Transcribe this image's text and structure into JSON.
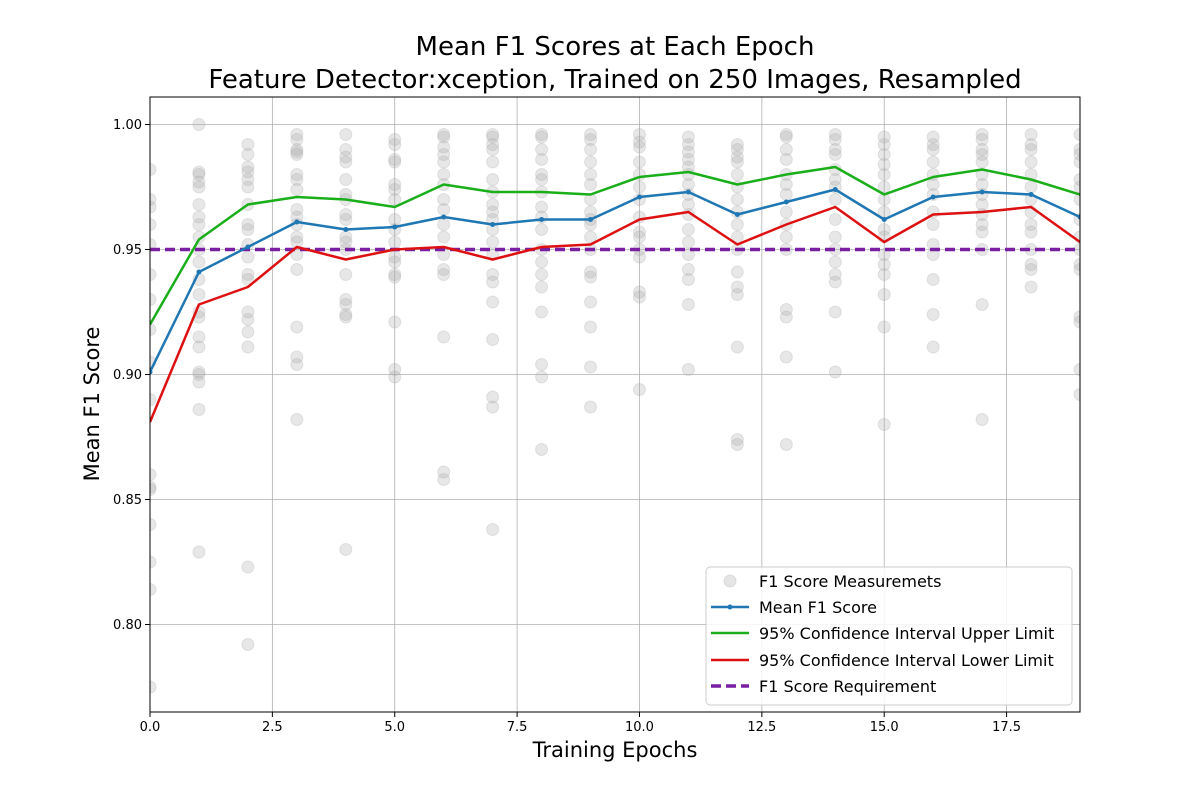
{
  "chart_data": {
    "type": "line",
    "title": "Mean F1 Scores at Each Epoch",
    "subtitle": "Feature Detector:xception, Trained on 250 Images, Resampled",
    "xlabel": "Training Epochs",
    "ylabel": "Mean F1 Score",
    "xlim": [
      0,
      19
    ],
    "ylim": [
      0.765,
      1.011
    ],
    "x_ticks": [
      0.0,
      2.5,
      5.0,
      7.5,
      10.0,
      12.5,
      15.0,
      17.5
    ],
    "x_tick_labels": [
      "0.0",
      "2.5",
      "5.0",
      "7.5",
      "10.0",
      "12.5",
      "15.0",
      "17.5"
    ],
    "y_ticks": [
      0.8,
      0.85,
      0.9,
      0.95,
      1.0
    ],
    "y_tick_labels": [
      "0.80",
      "0.85",
      "0.90",
      "0.95",
      "1.00"
    ],
    "grid": true,
    "legend_position": "bottom-right",
    "colors": {
      "measurements": "#aaaaaa",
      "mean": "#1f77b4",
      "upper": "#1aaf1a",
      "lower": "#dd1111",
      "requirement": "#7b1fa2"
    },
    "x": [
      0,
      1,
      2,
      3,
      4,
      5,
      6,
      7,
      8,
      9,
      10,
      11,
      12,
      13,
      14,
      15,
      16,
      17,
      18,
      19
    ],
    "series": [
      {
        "name": "Mean F1 Score",
        "key": "mean",
        "values": [
          0.901,
          0.941,
          0.951,
          0.961,
          0.958,
          0.959,
          0.963,
          0.96,
          0.962,
          0.962,
          0.971,
          0.973,
          0.964,
          0.969,
          0.974,
          0.962,
          0.971,
          0.973,
          0.972,
          0.963
        ]
      },
      {
        "name": "95% Confidence Interval Upper Limit",
        "key": "upper",
        "values": [
          0.92,
          0.954,
          0.968,
          0.971,
          0.97,
          0.967,
          0.976,
          0.973,
          0.973,
          0.972,
          0.979,
          0.981,
          0.976,
          0.98,
          0.983,
          0.972,
          0.979,
          0.982,
          0.978,
          0.972
        ]
      },
      {
        "name": "95% Confidence Interval Lower Limit",
        "key": "lower",
        "values": [
          0.881,
          0.928,
          0.935,
          0.951,
          0.946,
          0.95,
          0.951,
          0.946,
          0.951,
          0.952,
          0.962,
          0.965,
          0.952,
          0.96,
          0.967,
          0.953,
          0.964,
          0.965,
          0.967,
          0.953
        ]
      },
      {
        "name": "F1 Score Requirement",
        "key": "requirement",
        "style": "dashed",
        "values": [
          0.95,
          0.95,
          0.95,
          0.95,
          0.95,
          0.95,
          0.95,
          0.95,
          0.95,
          0.95,
          0.95,
          0.95,
          0.95,
          0.95,
          0.95,
          0.95,
          0.95,
          0.95,
          0.95,
          0.95
        ]
      }
    ],
    "measurements_name": "F1 Score Measuremets",
    "measurements": [
      [
        0,
        0.982
      ],
      [
        0,
        0.97
      ],
      [
        0,
        0.967
      ],
      [
        0,
        0.96
      ],
      [
        0,
        0.952
      ],
      [
        0,
        0.94
      ],
      [
        0,
        0.93
      ],
      [
        0,
        0.918
      ],
      [
        0,
        0.905
      ],
      [
        0,
        0.89
      ],
      [
        0,
        0.86
      ],
      [
        0,
        0.855
      ],
      [
        0,
        0.854
      ],
      [
        0,
        0.84
      ],
      [
        0,
        0.825
      ],
      [
        0,
        0.814
      ],
      [
        0,
        0.775
      ],
      [
        1,
        1.0
      ],
      [
        1,
        0.981
      ],
      [
        1,
        0.98
      ],
      [
        1,
        0.977
      ],
      [
        1,
        0.975
      ],
      [
        1,
        0.968
      ],
      [
        1,
        0.963
      ],
      [
        1,
        0.96
      ],
      [
        1,
        0.955
      ],
      [
        1,
        0.95
      ],
      [
        1,
        0.945
      ],
      [
        1,
        0.938
      ],
      [
        1,
        0.932
      ],
      [
        1,
        0.925
      ],
      [
        1,
        0.923
      ],
      [
        1,
        0.915
      ],
      [
        1,
        0.911
      ],
      [
        1,
        0.901
      ],
      [
        1,
        0.9
      ],
      [
        1,
        0.897
      ],
      [
        1,
        0.886
      ],
      [
        1,
        0.829
      ],
      [
        2,
        0.992
      ],
      [
        2,
        0.988
      ],
      [
        2,
        0.983
      ],
      [
        2,
        0.981
      ],
      [
        2,
        0.978
      ],
      [
        2,
        0.975
      ],
      [
        2,
        0.968
      ],
      [
        2,
        0.96
      ],
      [
        2,
        0.958
      ],
      [
        2,
        0.952
      ],
      [
        2,
        0.947
      ],
      [
        2,
        0.94
      ],
      [
        2,
        0.938
      ],
      [
        2,
        0.925
      ],
      [
        2,
        0.922
      ],
      [
        2,
        0.917
      ],
      [
        2,
        0.911
      ],
      [
        2,
        0.823
      ],
      [
        2,
        0.792
      ],
      [
        3,
        0.996
      ],
      [
        3,
        0.994
      ],
      [
        3,
        0.99
      ],
      [
        3,
        0.989
      ],
      [
        3,
        0.988
      ],
      [
        3,
        0.98
      ],
      [
        3,
        0.978
      ],
      [
        3,
        0.974
      ],
      [
        3,
        0.966
      ],
      [
        3,
        0.963
      ],
      [
        3,
        0.96
      ],
      [
        3,
        0.955
      ],
      [
        3,
        0.953
      ],
      [
        3,
        0.948
      ],
      [
        3,
        0.942
      ],
      [
        3,
        0.919
      ],
      [
        3,
        0.907
      ],
      [
        3,
        0.904
      ],
      [
        3,
        0.882
      ],
      [
        4,
        0.996
      ],
      [
        4,
        0.99
      ],
      [
        4,
        0.987
      ],
      [
        4,
        0.985
      ],
      [
        4,
        0.978
      ],
      [
        4,
        0.972
      ],
      [
        4,
        0.97
      ],
      [
        4,
        0.964
      ],
      [
        4,
        0.962
      ],
      [
        4,
        0.955
      ],
      [
        4,
        0.953
      ],
      [
        4,
        0.95
      ],
      [
        4,
        0.94
      ],
      [
        4,
        0.93
      ],
      [
        4,
        0.928
      ],
      [
        4,
        0.924
      ],
      [
        4,
        0.923
      ],
      [
        4,
        0.83
      ],
      [
        5,
        0.994
      ],
      [
        5,
        0.992
      ],
      [
        5,
        0.986
      ],
      [
        5,
        0.985
      ],
      [
        5,
        0.976
      ],
      [
        5,
        0.974
      ],
      [
        5,
        0.97
      ],
      [
        5,
        0.962
      ],
      [
        5,
        0.958
      ],
      [
        5,
        0.953
      ],
      [
        5,
        0.947
      ],
      [
        5,
        0.945
      ],
      [
        5,
        0.94
      ],
      [
        5,
        0.939
      ],
      [
        5,
        0.921
      ],
      [
        5,
        0.902
      ],
      [
        5,
        0.899
      ],
      [
        6,
        0.996
      ],
      [
        6,
        0.995
      ],
      [
        6,
        0.991
      ],
      [
        6,
        0.988
      ],
      [
        6,
        0.985
      ],
      [
        6,
        0.98
      ],
      [
        6,
        0.976
      ],
      [
        6,
        0.97
      ],
      [
        6,
        0.966
      ],
      [
        6,
        0.96
      ],
      [
        6,
        0.955
      ],
      [
        6,
        0.948
      ],
      [
        6,
        0.942
      ],
      [
        6,
        0.94
      ],
      [
        6,
        0.915
      ],
      [
        6,
        0.861
      ],
      [
        6,
        0.858
      ],
      [
        7,
        0.996
      ],
      [
        7,
        0.995
      ],
      [
        7,
        0.992
      ],
      [
        7,
        0.99
      ],
      [
        7,
        0.985
      ],
      [
        7,
        0.978
      ],
      [
        7,
        0.973
      ],
      [
        7,
        0.968
      ],
      [
        7,
        0.965
      ],
      [
        7,
        0.962
      ],
      [
        7,
        0.958
      ],
      [
        7,
        0.953
      ],
      [
        7,
        0.948
      ],
      [
        7,
        0.94
      ],
      [
        7,
        0.937
      ],
      [
        7,
        0.929
      ],
      [
        7,
        0.914
      ],
      [
        7,
        0.891
      ],
      [
        7,
        0.887
      ],
      [
        7,
        0.838
      ],
      [
        8,
        0.996
      ],
      [
        8,
        0.995
      ],
      [
        8,
        0.99
      ],
      [
        8,
        0.986
      ],
      [
        8,
        0.98
      ],
      [
        8,
        0.978
      ],
      [
        8,
        0.973
      ],
      [
        8,
        0.967
      ],
      [
        8,
        0.963
      ],
      [
        8,
        0.958
      ],
      [
        8,
        0.95
      ],
      [
        8,
        0.945
      ],
      [
        8,
        0.94
      ],
      [
        8,
        0.935
      ],
      [
        8,
        0.925
      ],
      [
        8,
        0.904
      ],
      [
        8,
        0.899
      ],
      [
        8,
        0.87
      ],
      [
        9,
        0.996
      ],
      [
        9,
        0.994
      ],
      [
        9,
        0.99
      ],
      [
        9,
        0.985
      ],
      [
        9,
        0.98
      ],
      [
        9,
        0.976
      ],
      [
        9,
        0.97
      ],
      [
        9,
        0.965
      ],
      [
        9,
        0.962
      ],
      [
        9,
        0.96
      ],
      [
        9,
        0.955
      ],
      [
        9,
        0.95
      ],
      [
        9,
        0.941
      ],
      [
        9,
        0.939
      ],
      [
        9,
        0.929
      ],
      [
        9,
        0.919
      ],
      [
        9,
        0.903
      ],
      [
        9,
        0.887
      ],
      [
        10,
        0.996
      ],
      [
        10,
        0.993
      ],
      [
        10,
        0.991
      ],
      [
        10,
        0.985
      ],
      [
        10,
        0.98
      ],
      [
        10,
        0.975
      ],
      [
        10,
        0.97
      ],
      [
        10,
        0.963
      ],
      [
        10,
        0.957
      ],
      [
        10,
        0.955
      ],
      [
        10,
        0.95
      ],
      [
        10,
        0.947
      ],
      [
        10,
        0.933
      ],
      [
        10,
        0.931
      ],
      [
        10,
        0.894
      ],
      [
        11,
        0.995
      ],
      [
        11,
        0.992
      ],
      [
        11,
        0.989
      ],
      [
        11,
        0.986
      ],
      [
        11,
        0.983
      ],
      [
        11,
        0.98
      ],
      [
        11,
        0.976
      ],
      [
        11,
        0.972
      ],
      [
        11,
        0.968
      ],
      [
        11,
        0.964
      ],
      [
        11,
        0.958
      ],
      [
        11,
        0.953
      ],
      [
        11,
        0.948
      ],
      [
        11,
        0.942
      ],
      [
        11,
        0.938
      ],
      [
        11,
        0.928
      ],
      [
        11,
        0.902
      ],
      [
        12,
        0.992
      ],
      [
        12,
        0.99
      ],
      [
        12,
        0.987
      ],
      [
        12,
        0.985
      ],
      [
        12,
        0.98
      ],
      [
        12,
        0.975
      ],
      [
        12,
        0.97
      ],
      [
        12,
        0.965
      ],
      [
        12,
        0.96
      ],
      [
        12,
        0.955
      ],
      [
        12,
        0.95
      ],
      [
        12,
        0.941
      ],
      [
        12,
        0.935
      ],
      [
        12,
        0.932
      ],
      [
        12,
        0.911
      ],
      [
        12,
        0.874
      ],
      [
        12,
        0.872
      ],
      [
        13,
        0.996
      ],
      [
        13,
        0.995
      ],
      [
        13,
        0.99
      ],
      [
        13,
        0.986
      ],
      [
        13,
        0.98
      ],
      [
        13,
        0.976
      ],
      [
        13,
        0.972
      ],
      [
        13,
        0.965
      ],
      [
        13,
        0.96
      ],
      [
        13,
        0.955
      ],
      [
        13,
        0.95
      ],
      [
        13,
        0.926
      ],
      [
        13,
        0.923
      ],
      [
        13,
        0.907
      ],
      [
        13,
        0.872
      ],
      [
        14,
        0.996
      ],
      [
        14,
        0.994
      ],
      [
        14,
        0.99
      ],
      [
        14,
        0.988
      ],
      [
        14,
        0.982
      ],
      [
        14,
        0.978
      ],
      [
        14,
        0.975
      ],
      [
        14,
        0.97
      ],
      [
        14,
        0.962
      ],
      [
        14,
        0.955
      ],
      [
        14,
        0.95
      ],
      [
        14,
        0.945
      ],
      [
        14,
        0.94
      ],
      [
        14,
        0.937
      ],
      [
        14,
        0.925
      ],
      [
        14,
        0.901
      ],
      [
        15,
        0.995
      ],
      [
        15,
        0.992
      ],
      [
        15,
        0.988
      ],
      [
        15,
        0.984
      ],
      [
        15,
        0.98
      ],
      [
        15,
        0.975
      ],
      [
        15,
        0.97
      ],
      [
        15,
        0.965
      ],
      [
        15,
        0.958
      ],
      [
        15,
        0.955
      ],
      [
        15,
        0.948
      ],
      [
        15,
        0.944
      ],
      [
        15,
        0.94
      ],
      [
        15,
        0.932
      ],
      [
        15,
        0.919
      ],
      [
        15,
        0.88
      ],
      [
        16,
        0.995
      ],
      [
        16,
        0.992
      ],
      [
        16,
        0.99
      ],
      [
        16,
        0.985
      ],
      [
        16,
        0.98
      ],
      [
        16,
        0.976
      ],
      [
        16,
        0.972
      ],
      [
        16,
        0.965
      ],
      [
        16,
        0.96
      ],
      [
        16,
        0.952
      ],
      [
        16,
        0.948
      ],
      [
        16,
        0.938
      ],
      [
        16,
        0.924
      ],
      [
        16,
        0.911
      ],
      [
        17,
        0.996
      ],
      [
        17,
        0.994
      ],
      [
        17,
        0.99
      ],
      [
        17,
        0.988
      ],
      [
        17,
        0.985
      ],
      [
        17,
        0.98
      ],
      [
        17,
        0.976
      ],
      [
        17,
        0.972
      ],
      [
        17,
        0.968
      ],
      [
        17,
        0.964
      ],
      [
        17,
        0.96
      ],
      [
        17,
        0.957
      ],
      [
        17,
        0.95
      ],
      [
        17,
        0.928
      ],
      [
        17,
        0.882
      ],
      [
        18,
        0.996
      ],
      [
        18,
        0.992
      ],
      [
        18,
        0.99
      ],
      [
        18,
        0.985
      ],
      [
        18,
        0.98
      ],
      [
        18,
        0.975
      ],
      [
        18,
        0.97
      ],
      [
        18,
        0.965
      ],
      [
        18,
        0.96
      ],
      [
        18,
        0.957
      ],
      [
        18,
        0.95
      ],
      [
        18,
        0.944
      ],
      [
        18,
        0.942
      ],
      [
        18,
        0.935
      ],
      [
        19,
        0.996
      ],
      [
        19,
        0.99
      ],
      [
        19,
        0.988
      ],
      [
        19,
        0.985
      ],
      [
        19,
        0.978
      ],
      [
        19,
        0.975
      ],
      [
        19,
        0.97
      ],
      [
        19,
        0.962
      ],
      [
        19,
        0.955
      ],
      [
        19,
        0.95
      ],
      [
        19,
        0.944
      ],
      [
        19,
        0.942
      ],
      [
        19,
        0.923
      ],
      [
        19,
        0.921
      ],
      [
        19,
        0.902
      ],
      [
        19,
        0.892
      ]
    ]
  }
}
